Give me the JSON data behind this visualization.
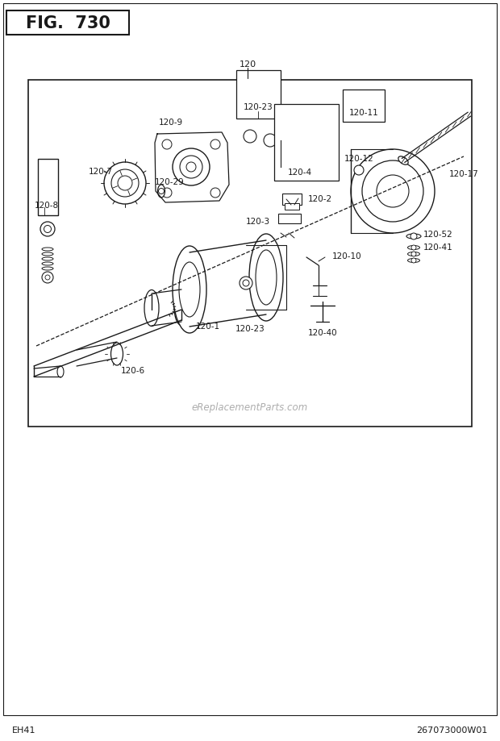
{
  "title": "FIG.  730",
  "fig_label_left": "EH41",
  "fig_label_right": "267073000W01",
  "watermark": "eReplacementParts.com",
  "bg_color": "#ffffff",
  "line_color": "#1a1a1a"
}
